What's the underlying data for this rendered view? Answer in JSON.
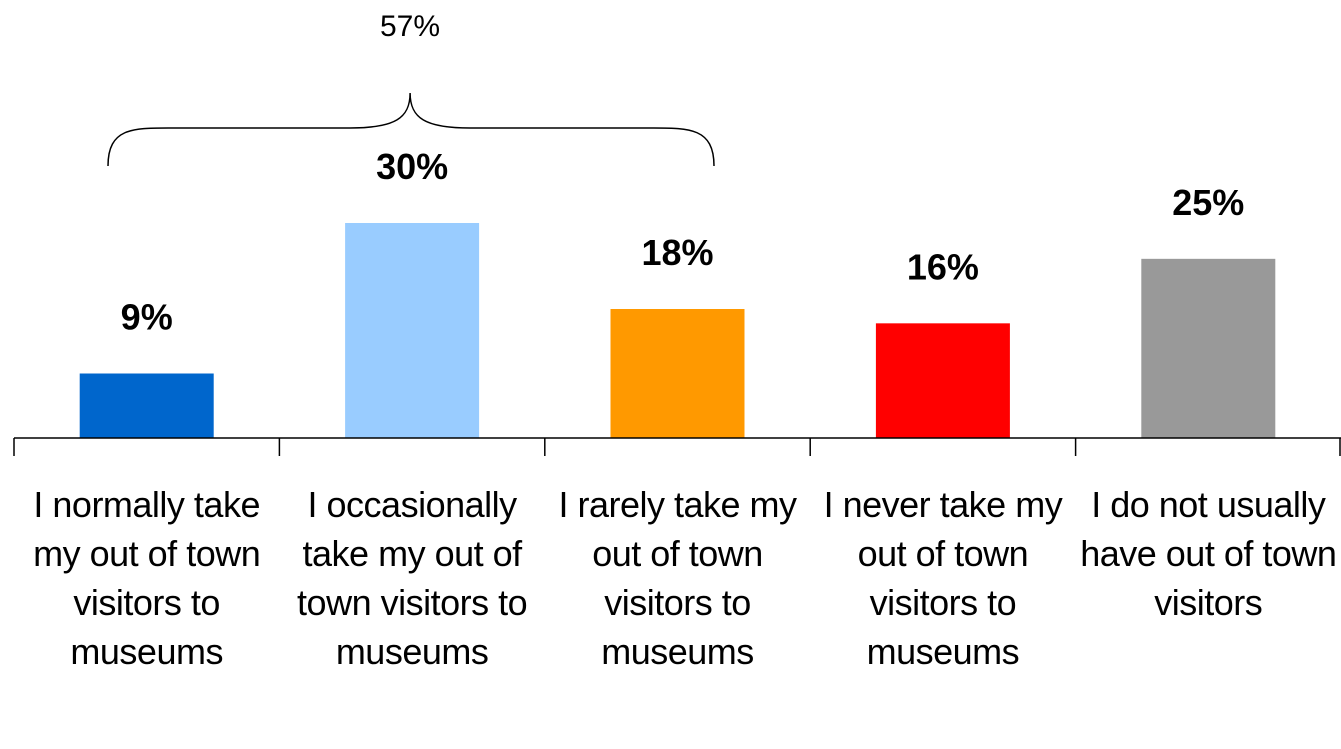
{
  "chart_data": {
    "type": "bar",
    "categories": [
      "I normally take my out of town visitors to museums",
      "I occasionally take my out of town visitors to museums",
      "I rarely take my out of town visitors to museums",
      "I never take my out of town visitors to museums",
      "I do not usually have out of town visitors"
    ],
    "values": [
      9,
      30,
      18,
      16,
      25
    ],
    "value_labels": [
      "9%",
      "30%",
      "18%",
      "16%",
      "25%"
    ],
    "colors": [
      "#0066CC",
      "#99CCFF",
      "#FF9900",
      "#FF0000",
      "#999999"
    ],
    "ylim": [
      0,
      36
    ],
    "title": "",
    "xlabel": "",
    "ylabel": "",
    "grid": false,
    "legend": "none",
    "annotation": {
      "type": "brace",
      "spans_categories": [
        0,
        1,
        2
      ],
      "label": "57%"
    }
  }
}
